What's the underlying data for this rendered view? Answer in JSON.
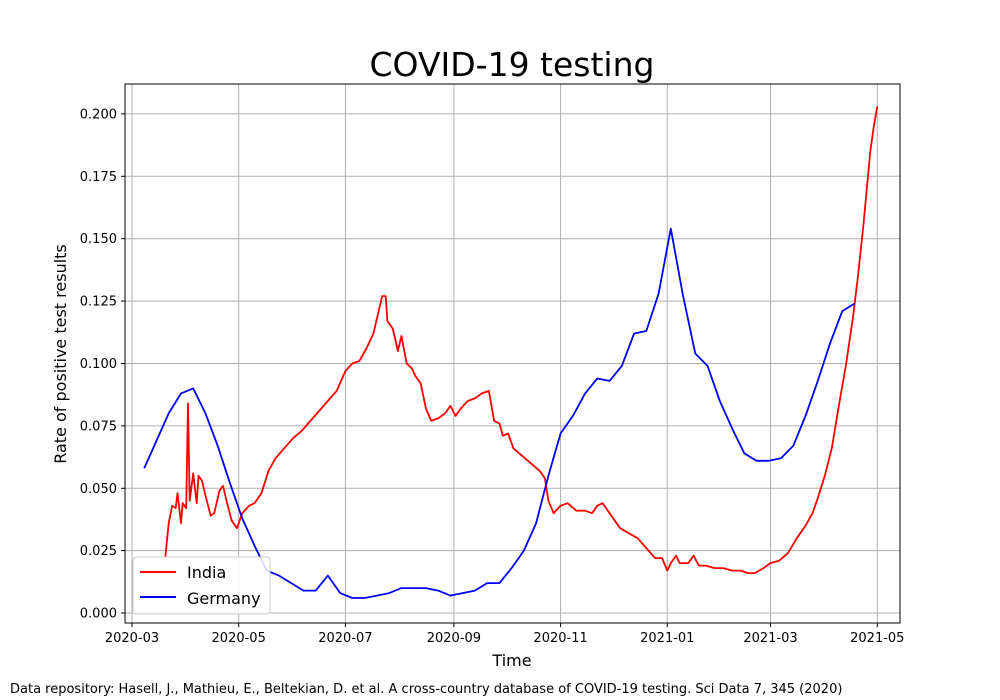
{
  "chart_data": {
    "type": "line",
    "title": "COVID-19 testing",
    "xlabel": "Time",
    "ylabel": "Rate of positive test results",
    "xlim": [
      "2020-02-26",
      "2021-05-14"
    ],
    "ylim": [
      -0.004,
      0.212
    ],
    "grid": true,
    "legend_position": "lower-left",
    "x_ticks": [
      "2020-03-01",
      "2020-05-01",
      "2020-07-01",
      "2020-09-01",
      "2020-11-01",
      "2021-01-01",
      "2021-03-01",
      "2021-05-01"
    ],
    "x_tick_labels": [
      "2020-03",
      "2020-05",
      "2020-07",
      "2020-09",
      "2020-11",
      "2021-01",
      "2021-03",
      "2021-05"
    ],
    "y_ticks": [
      0.0,
      0.025,
      0.05,
      0.075,
      0.1,
      0.125,
      0.15,
      0.175,
      0.2
    ],
    "y_tick_labels": [
      "0.000",
      "0.025",
      "0.050",
      "0.075",
      "0.100",
      "0.125",
      "0.150",
      "0.175",
      "0.200"
    ],
    "series": [
      {
        "name": "India",
        "color": "#ff0000",
        "points": [
          [
            "2020-03-20",
            0.022
          ],
          [
            "2020-03-22",
            0.036
          ],
          [
            "2020-03-24",
            0.043
          ],
          [
            "2020-03-26",
            0.042
          ],
          [
            "2020-03-27",
            0.048
          ],
          [
            "2020-03-29",
            0.036
          ],
          [
            "2020-03-30",
            0.044
          ],
          [
            "2020-04-01",
            0.042
          ],
          [
            "2020-04-02",
            0.084
          ],
          [
            "2020-04-03",
            0.045
          ],
          [
            "2020-04-05",
            0.056
          ],
          [
            "2020-04-07",
            0.044
          ],
          [
            "2020-04-08",
            0.055
          ],
          [
            "2020-04-10",
            0.053
          ],
          [
            "2020-04-12",
            0.047
          ],
          [
            "2020-04-15",
            0.039
          ],
          [
            "2020-04-17",
            0.04
          ],
          [
            "2020-04-20",
            0.049
          ],
          [
            "2020-04-22",
            0.051
          ],
          [
            "2020-04-24",
            0.045
          ],
          [
            "2020-04-27",
            0.037
          ],
          [
            "2020-04-30",
            0.034
          ],
          [
            "2020-05-03",
            0.04
          ],
          [
            "2020-05-07",
            0.043
          ],
          [
            "2020-05-10",
            0.044
          ],
          [
            "2020-05-14",
            0.048
          ],
          [
            "2020-05-18",
            0.057
          ],
          [
            "2020-05-22",
            0.062
          ],
          [
            "2020-05-27",
            0.066
          ],
          [
            "2020-06-01",
            0.07
          ],
          [
            "2020-06-06",
            0.073
          ],
          [
            "2020-06-11",
            0.077
          ],
          [
            "2020-06-16",
            0.081
          ],
          [
            "2020-06-21",
            0.085
          ],
          [
            "2020-06-26",
            0.089
          ],
          [
            "2020-07-01",
            0.097
          ],
          [
            "2020-07-05",
            0.1
          ],
          [
            "2020-07-09",
            0.101
          ],
          [
            "2020-07-13",
            0.106
          ],
          [
            "2020-07-17",
            0.112
          ],
          [
            "2020-07-20",
            0.121
          ],
          [
            "2020-07-22",
            0.127
          ],
          [
            "2020-07-24",
            0.127
          ],
          [
            "2020-07-25",
            0.117
          ],
          [
            "2020-07-28",
            0.114
          ],
          [
            "2020-07-31",
            0.105
          ],
          [
            "2020-08-02",
            0.111
          ],
          [
            "2020-08-05",
            0.1
          ],
          [
            "2020-08-08",
            0.098
          ],
          [
            "2020-08-10",
            0.095
          ],
          [
            "2020-08-13",
            0.092
          ],
          [
            "2020-08-16",
            0.082
          ],
          [
            "2020-08-19",
            0.077
          ],
          [
            "2020-08-23",
            0.078
          ],
          [
            "2020-08-27",
            0.08
          ],
          [
            "2020-08-30",
            0.083
          ],
          [
            "2020-09-02",
            0.079
          ],
          [
            "2020-09-05",
            0.082
          ],
          [
            "2020-09-09",
            0.085
          ],
          [
            "2020-09-13",
            0.086
          ],
          [
            "2020-09-17",
            0.088
          ],
          [
            "2020-09-21",
            0.089
          ],
          [
            "2020-09-24",
            0.077
          ],
          [
            "2020-09-27",
            0.076
          ],
          [
            "2020-09-29",
            0.071
          ],
          [
            "2020-10-02",
            0.072
          ],
          [
            "2020-10-05",
            0.066
          ],
          [
            "2020-10-10",
            0.063
          ],
          [
            "2020-10-15",
            0.06
          ],
          [
            "2020-10-20",
            0.057
          ],
          [
            "2020-10-23",
            0.054
          ],
          [
            "2020-10-25",
            0.045
          ],
          [
            "2020-10-28",
            0.04
          ],
          [
            "2020-11-01",
            0.043
          ],
          [
            "2020-11-05",
            0.044
          ],
          [
            "2020-11-10",
            0.041
          ],
          [
            "2020-11-15",
            0.041
          ],
          [
            "2020-11-19",
            0.04
          ],
          [
            "2020-11-22",
            0.043
          ],
          [
            "2020-11-25",
            0.044
          ],
          [
            "2020-11-30",
            0.039
          ],
          [
            "2020-12-05",
            0.034
          ],
          [
            "2020-12-10",
            0.032
          ],
          [
            "2020-12-15",
            0.03
          ],
          [
            "2020-12-20",
            0.026
          ],
          [
            "2020-12-25",
            0.022
          ],
          [
            "2020-12-29",
            0.022
          ],
          [
            "2021-01-01",
            0.017
          ],
          [
            "2021-01-03",
            0.02
          ],
          [
            "2021-01-06",
            0.023
          ],
          [
            "2021-01-08",
            0.02
          ],
          [
            "2021-01-13",
            0.02
          ],
          [
            "2021-01-16",
            0.023
          ],
          [
            "2021-01-19",
            0.019
          ],
          [
            "2021-01-23",
            0.019
          ],
          [
            "2021-01-28",
            0.018
          ],
          [
            "2021-02-02",
            0.018
          ],
          [
            "2021-02-07",
            0.017
          ],
          [
            "2021-02-12",
            0.017
          ],
          [
            "2021-02-16",
            0.016
          ],
          [
            "2021-02-20",
            0.016
          ],
          [
            "2021-02-25",
            0.018
          ],
          [
            "2021-03-01",
            0.02
          ],
          [
            "2021-03-06",
            0.021
          ],
          [
            "2021-03-11",
            0.024
          ],
          [
            "2021-03-16",
            0.03
          ],
          [
            "2021-03-21",
            0.035
          ],
          [
            "2021-03-25",
            0.04
          ],
          [
            "2021-03-28",
            0.046
          ],
          [
            "2021-04-01",
            0.055
          ],
          [
            "2021-04-05",
            0.066
          ],
          [
            "2021-04-09",
            0.083
          ],
          [
            "2021-04-13",
            0.099
          ],
          [
            "2021-04-17",
            0.118
          ],
          [
            "2021-04-20",
            0.135
          ],
          [
            "2021-04-23",
            0.155
          ],
          [
            "2021-04-25",
            0.17
          ],
          [
            "2021-04-27",
            0.185
          ],
          [
            "2021-04-29",
            0.195
          ],
          [
            "2021-05-01",
            0.203
          ]
        ]
      },
      {
        "name": "Germany",
        "color": "#0000ff",
        "points": [
          [
            "2020-03-08",
            0.058
          ],
          [
            "2020-03-15",
            0.069
          ],
          [
            "2020-03-22",
            0.08
          ],
          [
            "2020-03-29",
            0.088
          ],
          [
            "2020-04-05",
            0.09
          ],
          [
            "2020-04-12",
            0.08
          ],
          [
            "2020-04-19",
            0.067
          ],
          [
            "2020-04-26",
            0.052
          ],
          [
            "2020-05-03",
            0.038
          ],
          [
            "2020-05-10",
            0.027
          ],
          [
            "2020-05-17",
            0.017
          ],
          [
            "2020-05-24",
            0.015
          ],
          [
            "2020-05-31",
            0.012
          ],
          [
            "2020-06-07",
            0.009
          ],
          [
            "2020-06-14",
            0.009
          ],
          [
            "2020-06-21",
            0.015
          ],
          [
            "2020-06-28",
            0.008
          ],
          [
            "2020-07-05",
            0.006
          ],
          [
            "2020-07-12",
            0.006
          ],
          [
            "2020-07-19",
            0.007
          ],
          [
            "2020-07-26",
            0.008
          ],
          [
            "2020-08-02",
            0.01
          ],
          [
            "2020-08-09",
            0.01
          ],
          [
            "2020-08-16",
            0.01
          ],
          [
            "2020-08-23",
            0.009
          ],
          [
            "2020-08-30",
            0.007
          ],
          [
            "2020-09-06",
            0.008
          ],
          [
            "2020-09-13",
            0.009
          ],
          [
            "2020-09-20",
            0.012
          ],
          [
            "2020-09-27",
            0.012
          ],
          [
            "2020-10-04",
            0.018
          ],
          [
            "2020-10-11",
            0.025
          ],
          [
            "2020-10-18",
            0.036
          ],
          [
            "2020-10-25",
            0.055
          ],
          [
            "2020-11-01",
            0.072
          ],
          [
            "2020-11-08",
            0.079
          ],
          [
            "2020-11-15",
            0.088
          ],
          [
            "2020-11-22",
            0.094
          ],
          [
            "2020-11-29",
            0.093
          ],
          [
            "2020-12-06",
            0.099
          ],
          [
            "2020-12-13",
            0.112
          ],
          [
            "2020-12-20",
            0.113
          ],
          [
            "2020-12-27",
            0.128
          ],
          [
            "2021-01-03",
            0.154
          ],
          [
            "2021-01-10",
            0.127
          ],
          [
            "2021-01-17",
            0.104
          ],
          [
            "2021-01-24",
            0.099
          ],
          [
            "2021-01-31",
            0.085
          ],
          [
            "2021-02-07",
            0.074
          ],
          [
            "2021-02-14",
            0.064
          ],
          [
            "2021-02-21",
            0.061
          ],
          [
            "2021-02-28",
            0.061
          ],
          [
            "2021-03-07",
            0.062
          ],
          [
            "2021-03-14",
            0.067
          ],
          [
            "2021-03-21",
            0.079
          ],
          [
            "2021-03-28",
            0.093
          ],
          [
            "2021-04-04",
            0.108
          ],
          [
            "2021-04-11",
            0.121
          ],
          [
            "2021-04-18",
            0.124
          ]
        ]
      }
    ]
  },
  "footer": {
    "source": "Data repository: Hasell, J., Mathieu, E., Beltekian, D. et al. A cross-country database of COVID-19 testing. Sci Data 7, 345 (2020)"
  }
}
